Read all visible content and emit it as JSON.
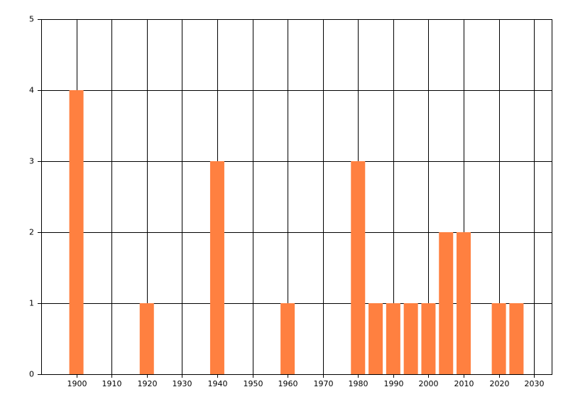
{
  "chart_data": {
    "type": "bar",
    "x": [
      1900,
      1920,
      1940,
      1960,
      1980,
      1985,
      1990,
      1995,
      2000,
      2005,
      2010,
      2020,
      2025
    ],
    "values": [
      4,
      1,
      3,
      1,
      3,
      1,
      1,
      1,
      1,
      2,
      2,
      1,
      1
    ],
    "color": "#ff8040",
    "xlim": [
      1890,
      2035
    ],
    "xticks": [
      1900,
      1910,
      1920,
      1930,
      1940,
      1950,
      1960,
      1970,
      1980,
      1990,
      2000,
      2010,
      2020,
      2030
    ],
    "ylim": [
      0,
      5
    ],
    "yticks": [
      0,
      1,
      2,
      3,
      4,
      5
    ],
    "grid": true
  }
}
